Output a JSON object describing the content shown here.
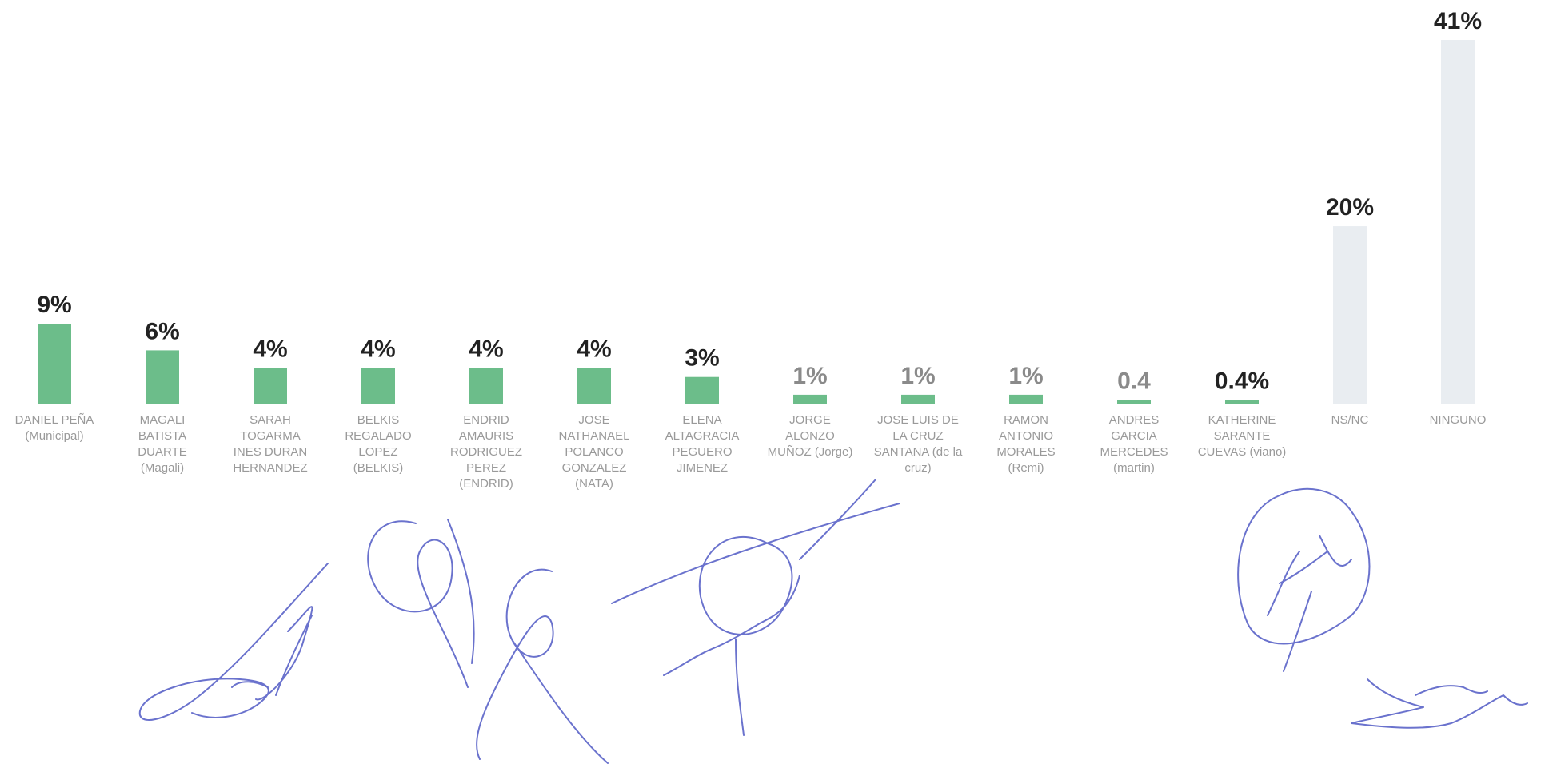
{
  "chart_data": {
    "type": "bar",
    "categories": [
      [
        "DANIEL PEÑA",
        "(Municipal)"
      ],
      [
        "MAGALI",
        "BATISTA",
        "DUARTE",
        "(Magali)"
      ],
      [
        "SARAH",
        "TOGARMA",
        "INES DURAN",
        "HERNANDEZ"
      ],
      [
        "BELKIS",
        "REGALADO",
        "LOPEZ",
        "(BELKIS)"
      ],
      [
        "ENDRID",
        "AMAURIS",
        "RODRIGUEZ",
        "PEREZ",
        "(ENDRID)"
      ],
      [
        "JOSE",
        "NATHANAEL",
        "POLANCO",
        "GONZALEZ",
        "(NATA)"
      ],
      [
        "ELENA",
        "ALTAGRACIA",
        "PEGUERO",
        "JIMENEZ"
      ],
      [
        "JORGE",
        "ALONZO",
        "MUÑOZ (Jorge)"
      ],
      [
        "JOSE LUIS DE",
        "LA CRUZ",
        "SANTANA (de la",
        "cruz)"
      ],
      [
        "RAMON",
        "ANTONIO",
        "MORALES",
        "(Remi)"
      ],
      [
        "ANDRES",
        "GARCIA",
        "MERCEDES",
        "(martin)"
      ],
      [
        "KATHERINE",
        "SARANTE",
        "CUEVAS (viano)"
      ],
      [
        "NS/NC"
      ],
      [
        "NINGUNO"
      ]
    ],
    "values": [
      9,
      6,
      4,
      4,
      4,
      4,
      3,
      1,
      1,
      1,
      0.4,
      0.4,
      20,
      41
    ],
    "value_labels": [
      "9%",
      "6%",
      "4%",
      "4%",
      "4%",
      "4%",
      "3%",
      "1%",
      "1%",
      "1%",
      "0.4",
      "0.4%",
      "20%",
      "41%"
    ],
    "label_colors": [
      "#222222",
      "#222222",
      "#222222",
      "#222222",
      "#222222",
      "#222222",
      "#222222",
      "#8a8a8a",
      "#8a8a8a",
      "#8a8a8a",
      "#8a8a8a",
      "#222222",
      "#222222",
      "#222222"
    ],
    "bar_colors": [
      "#6cbd8a",
      "#6cbd8a",
      "#6cbd8a",
      "#6cbd8a",
      "#6cbd8a",
      "#6cbd8a",
      "#6cbd8a",
      "#6cbd8a",
      "#6cbd8a",
      "#6cbd8a",
      "#6cbd8a",
      "#6cbd8a",
      "#e9edf1",
      "#e9edf1"
    ],
    "ylim": [
      0,
      41
    ],
    "title": "",
    "xlabel": "",
    "ylabel": "",
    "grid": false,
    "legend": "none"
  },
  "signatures": [
    "signature-1",
    "signature-2",
    "signature-3",
    "signature-4",
    "signature-5"
  ]
}
